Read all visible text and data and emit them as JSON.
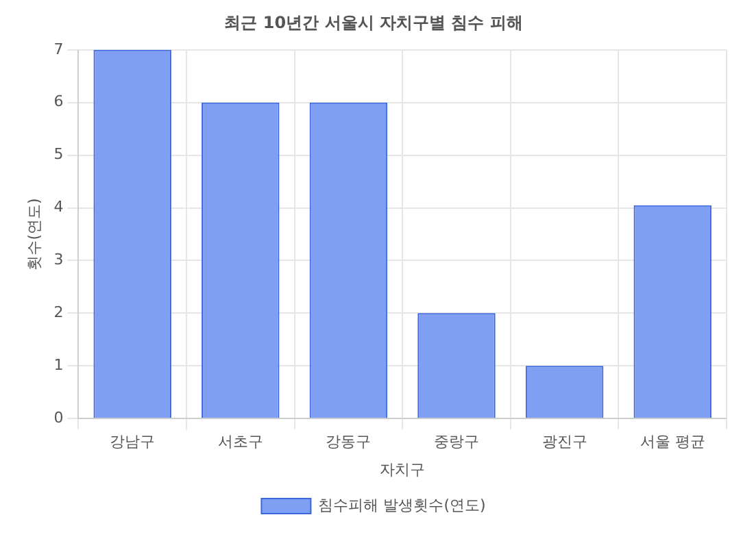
{
  "chart_data": {
    "type": "bar",
    "title": "최근 10년간 서울시 자치구별 침수 피해",
    "xlabel": "자치구",
    "ylabel": "횟수(연도)",
    "categories": [
      "강남구",
      "서초구",
      "강동구",
      "중랑구",
      "광진구",
      "서울 평균"
    ],
    "series": [
      {
        "name": "침수피해 발생횟수(연도)",
        "color": "#7f9ff2",
        "values": [
          7,
          6,
          6,
          2,
          1,
          4.05
        ]
      }
    ],
    "ylim": [
      0,
      7
    ],
    "yticks": [
      0,
      1,
      2,
      3,
      4,
      5,
      6,
      7
    ],
    "grid": true,
    "legend": "bottom"
  }
}
